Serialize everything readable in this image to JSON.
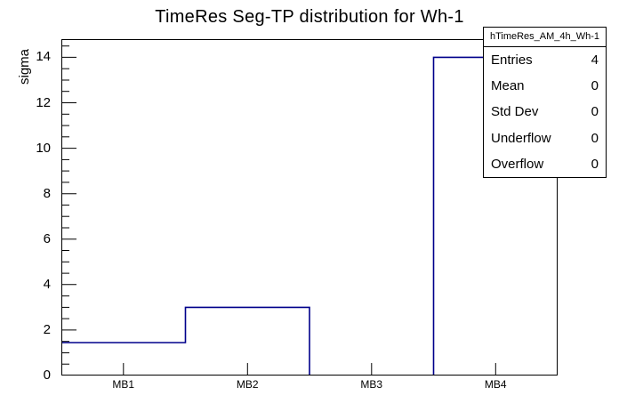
{
  "title": "TimeRes Seg-TP distribution for Wh-1",
  "chart_data": {
    "type": "bar",
    "style": "root-histogram-step-outline",
    "title": "TimeRes Seg-TP distribution for Wh-1",
    "categories": [
      "MB1",
      "MB2",
      "MB3",
      "MB4"
    ],
    "values": [
      1.45,
      3,
      0,
      14
    ],
    "xlabel": "",
    "ylabel": "sigma",
    "ylim": [
      0,
      14.8
    ],
    "y_major_step": 2,
    "y_minor_step": 0.5,
    "y_tick_labels": [
      "0",
      "2",
      "4",
      "6",
      "8",
      "10",
      "12",
      "14"
    ],
    "grid": false,
    "legend_position": "none",
    "line_color": "#00008b",
    "frame_color": "#000000",
    "background_color": "#ffffff"
  },
  "stats_box": {
    "header": "hTimeRes_AM_4h_Wh-1",
    "rows": [
      {
        "label": "Entries",
        "value": "4"
      },
      {
        "label": "Mean",
        "value": "0"
      },
      {
        "label": "Std Dev",
        "value": "0"
      },
      {
        "label": "Underflow",
        "value": "0"
      },
      {
        "label": "Overflow",
        "value": "0"
      }
    ]
  }
}
